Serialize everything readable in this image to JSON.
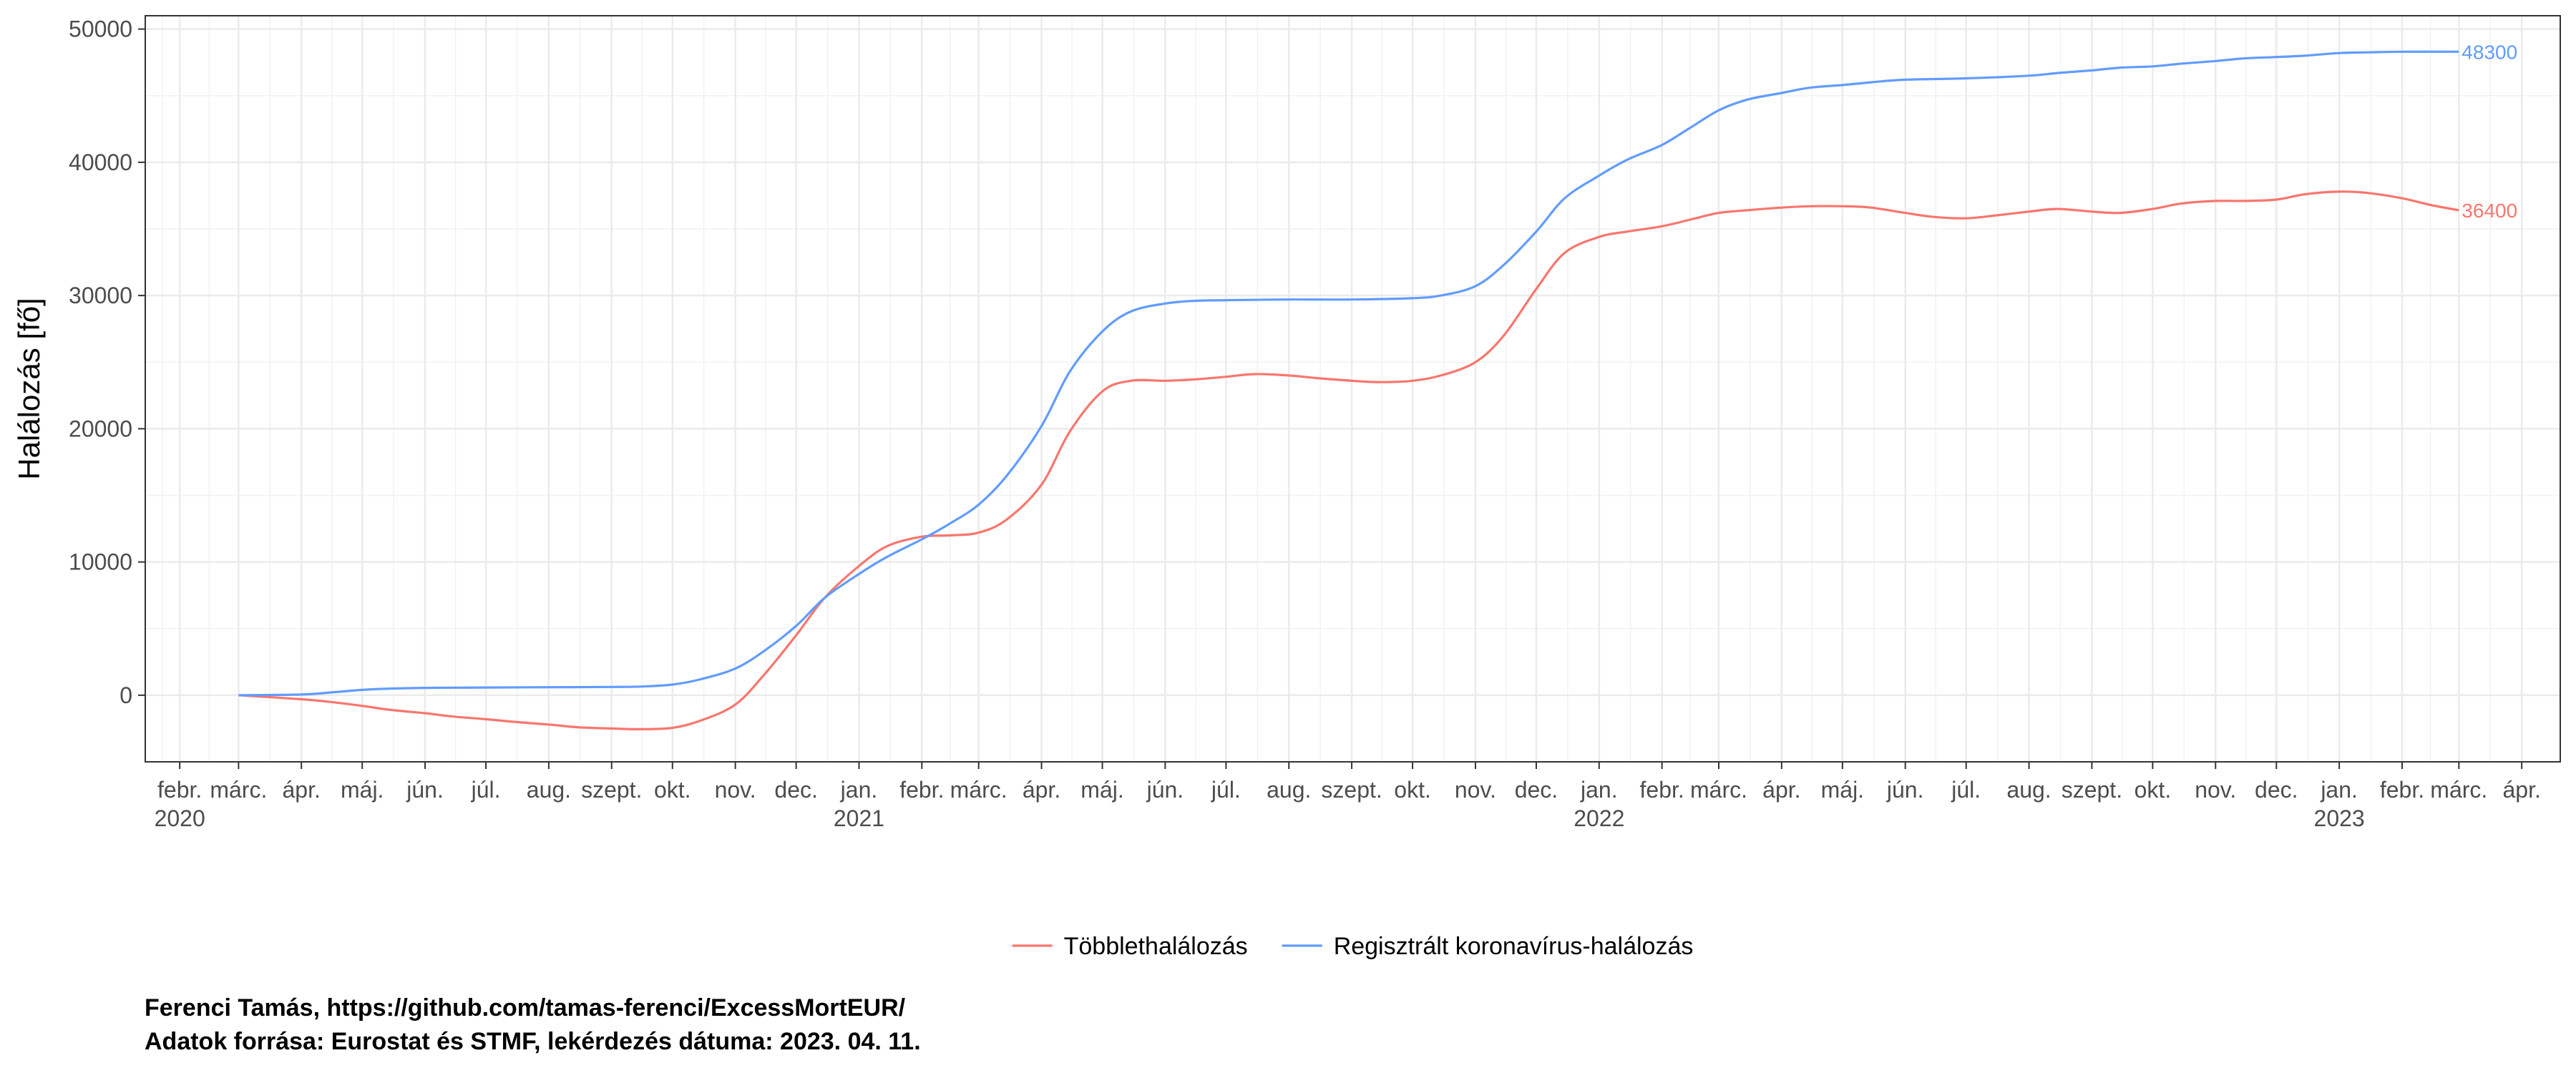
{
  "chart_data": {
    "type": "line",
    "title": "",
    "xlabel": "",
    "ylabel": "Halálozás [fő]",
    "ylim": [
      -5000,
      51000
    ],
    "y_ticks": [
      0,
      10000,
      20000,
      30000,
      40000,
      50000
    ],
    "xlim": [
      "2020-01-15",
      "2023-04-20"
    ],
    "x_tick_labels": [
      {
        "date": "2020-02-01",
        "label": "febr.",
        "year": "2020"
      },
      {
        "date": "2020-03-01",
        "label": "márc."
      },
      {
        "date": "2020-04-01",
        "label": "ápr."
      },
      {
        "date": "2020-05-01",
        "label": "máj."
      },
      {
        "date": "2020-06-01",
        "label": "jún."
      },
      {
        "date": "2020-07-01",
        "label": "júl."
      },
      {
        "date": "2020-08-01",
        "label": "aug."
      },
      {
        "date": "2020-09-01",
        "label": "szept."
      },
      {
        "date": "2020-10-01",
        "label": "okt."
      },
      {
        "date": "2020-11-01",
        "label": "nov."
      },
      {
        "date": "2020-12-01",
        "label": "dec."
      },
      {
        "date": "2021-01-01",
        "label": "jan.",
        "year": "2021"
      },
      {
        "date": "2021-02-01",
        "label": "febr."
      },
      {
        "date": "2021-03-01",
        "label": "márc."
      },
      {
        "date": "2021-04-01",
        "label": "ápr."
      },
      {
        "date": "2021-05-01",
        "label": "máj."
      },
      {
        "date": "2021-06-01",
        "label": "jún."
      },
      {
        "date": "2021-07-01",
        "label": "júl."
      },
      {
        "date": "2021-08-01",
        "label": "aug."
      },
      {
        "date": "2021-09-01",
        "label": "szept."
      },
      {
        "date": "2021-10-01",
        "label": "okt."
      },
      {
        "date": "2021-11-01",
        "label": "nov."
      },
      {
        "date": "2021-12-01",
        "label": "dec."
      },
      {
        "date": "2022-01-01",
        "label": "jan.",
        "year": "2022"
      },
      {
        "date": "2022-02-01",
        "label": "febr."
      },
      {
        "date": "2022-03-01",
        "label": "márc."
      },
      {
        "date": "2022-04-01",
        "label": "ápr."
      },
      {
        "date": "2022-05-01",
        "label": "máj."
      },
      {
        "date": "2022-06-01",
        "label": "jún."
      },
      {
        "date": "2022-07-01",
        "label": "júl."
      },
      {
        "date": "2022-08-01",
        "label": "aug."
      },
      {
        "date": "2022-09-01",
        "label": "szept."
      },
      {
        "date": "2022-10-01",
        "label": "okt."
      },
      {
        "date": "2022-11-01",
        "label": "nov."
      },
      {
        "date": "2022-12-01",
        "label": "dec."
      },
      {
        "date": "2023-01-01",
        "label": "jan.",
        "year": "2023"
      },
      {
        "date": "2023-02-01",
        "label": "febr."
      },
      {
        "date": "2023-03-01",
        "label": "márc."
      },
      {
        "date": "2023-04-01",
        "label": "ápr."
      }
    ],
    "grid": true,
    "legend_position": "bottom",
    "series": [
      {
        "name": "Többlethalálozás",
        "color": "#F8766D",
        "end_label": "36400",
        "points": [
          [
            "2020-03-01",
            0
          ],
          [
            "2020-04-01",
            -300
          ],
          [
            "2020-04-15",
            -500
          ],
          [
            "2020-05-01",
            -800
          ],
          [
            "2020-05-15",
            -1100
          ],
          [
            "2020-06-01",
            -1350
          ],
          [
            "2020-06-15",
            -1600
          ],
          [
            "2020-07-01",
            -1800
          ],
          [
            "2020-07-15",
            -2000
          ],
          [
            "2020-08-01",
            -2200
          ],
          [
            "2020-08-15",
            -2400
          ],
          [
            "2020-09-01",
            -2500
          ],
          [
            "2020-09-15",
            -2550
          ],
          [
            "2020-10-01",
            -2450
          ],
          [
            "2020-10-15",
            -1900
          ],
          [
            "2020-11-01",
            -700
          ],
          [
            "2020-11-15",
            1500
          ],
          [
            "2020-12-01",
            4500
          ],
          [
            "2020-12-15",
            7300
          ],
          [
            "2021-01-01",
            9700
          ],
          [
            "2021-01-15",
            11200
          ],
          [
            "2021-02-01",
            11900
          ],
          [
            "2021-02-15",
            12000
          ],
          [
            "2021-03-01",
            12200
          ],
          [
            "2021-03-15",
            13200
          ],
          [
            "2021-04-01",
            15800
          ],
          [
            "2021-04-15",
            19800
          ],
          [
            "2021-05-01",
            22800
          ],
          [
            "2021-05-15",
            23600
          ],
          [
            "2021-06-01",
            23600
          ],
          [
            "2021-06-15",
            23700
          ],
          [
            "2021-07-01",
            23900
          ],
          [
            "2021-07-15",
            24100
          ],
          [
            "2021-08-01",
            24000
          ],
          [
            "2021-08-15",
            23800
          ],
          [
            "2021-09-01",
            23600
          ],
          [
            "2021-09-15",
            23500
          ],
          [
            "2021-10-01",
            23600
          ],
          [
            "2021-10-15",
            24000
          ],
          [
            "2021-11-01",
            25000
          ],
          [
            "2021-11-15",
            27000
          ],
          [
            "2021-12-01",
            30500
          ],
          [
            "2021-12-15",
            33200
          ],
          [
            "2022-01-01",
            34400
          ],
          [
            "2022-01-15",
            34800
          ],
          [
            "2022-02-01",
            35200
          ],
          [
            "2022-02-15",
            35700
          ],
          [
            "2022-03-01",
            36200
          ],
          [
            "2022-03-15",
            36400
          ],
          [
            "2022-04-01",
            36600
          ],
          [
            "2022-04-15",
            36700
          ],
          [
            "2022-05-01",
            36700
          ],
          [
            "2022-05-15",
            36600
          ],
          [
            "2022-06-01",
            36200
          ],
          [
            "2022-06-15",
            35900
          ],
          [
            "2022-07-01",
            35800
          ],
          [
            "2022-07-15",
            36000
          ],
          [
            "2022-08-01",
            36300
          ],
          [
            "2022-08-15",
            36500
          ],
          [
            "2022-09-01",
            36300
          ],
          [
            "2022-09-15",
            36200
          ],
          [
            "2022-10-01",
            36500
          ],
          [
            "2022-10-15",
            36900
          ],
          [
            "2022-11-01",
            37100
          ],
          [
            "2022-11-15",
            37100
          ],
          [
            "2022-12-01",
            37200
          ],
          [
            "2022-12-15",
            37600
          ],
          [
            "2023-01-01",
            37800
          ],
          [
            "2023-01-15",
            37700
          ],
          [
            "2023-02-01",
            37300
          ],
          [
            "2023-02-15",
            36800
          ],
          [
            "2023-03-01",
            36400
          ]
        ]
      },
      {
        "name": "Regisztrált koronavírus-halálozás",
        "color": "#619CFF",
        "end_label": "48300",
        "points": [
          [
            "2020-03-01",
            0
          ],
          [
            "2020-04-01",
            50
          ],
          [
            "2020-04-15",
            200
          ],
          [
            "2020-05-01",
            400
          ],
          [
            "2020-05-15",
            500
          ],
          [
            "2020-06-01",
            550
          ],
          [
            "2020-07-01",
            580
          ],
          [
            "2020-08-01",
            600
          ],
          [
            "2020-09-01",
            620
          ],
          [
            "2020-09-15",
            650
          ],
          [
            "2020-10-01",
            800
          ],
          [
            "2020-10-15",
            1200
          ],
          [
            "2020-11-01",
            2000
          ],
          [
            "2020-11-15",
            3300
          ],
          [
            "2020-12-01",
            5200
          ],
          [
            "2020-12-15",
            7300
          ],
          [
            "2021-01-01",
            9100
          ],
          [
            "2021-01-15",
            10400
          ],
          [
            "2021-02-01",
            11700
          ],
          [
            "2021-02-15",
            12900
          ],
          [
            "2021-03-01",
            14300
          ],
          [
            "2021-03-15",
            16500
          ],
          [
            "2021-04-01",
            20200
          ],
          [
            "2021-04-15",
            24300
          ],
          [
            "2021-05-01",
            27300
          ],
          [
            "2021-05-15",
            28800
          ],
          [
            "2021-06-01",
            29400
          ],
          [
            "2021-06-15",
            29600
          ],
          [
            "2021-07-01",
            29650
          ],
          [
            "2021-08-01",
            29700
          ],
          [
            "2021-09-01",
            29700
          ],
          [
            "2021-10-01",
            29800
          ],
          [
            "2021-10-15",
            30000
          ],
          [
            "2021-11-01",
            30700
          ],
          [
            "2021-11-15",
            32300
          ],
          [
            "2021-12-01",
            34800
          ],
          [
            "2021-12-15",
            37300
          ],
          [
            "2022-01-01",
            39000
          ],
          [
            "2022-01-15",
            40200
          ],
          [
            "2022-02-01",
            41300
          ],
          [
            "2022-02-15",
            42600
          ],
          [
            "2022-03-01",
            43900
          ],
          [
            "2022-03-15",
            44700
          ],
          [
            "2022-04-01",
            45200
          ],
          [
            "2022-04-15",
            45600
          ],
          [
            "2022-05-01",
            45800
          ],
          [
            "2022-05-15",
            46000
          ],
          [
            "2022-06-01",
            46200
          ],
          [
            "2022-07-01",
            46300
          ],
          [
            "2022-08-01",
            46500
          ],
          [
            "2022-08-15",
            46700
          ],
          [
            "2022-09-01",
            46900
          ],
          [
            "2022-09-15",
            47100
          ],
          [
            "2022-10-01",
            47200
          ],
          [
            "2022-10-15",
            47400
          ],
          [
            "2022-11-01",
            47600
          ],
          [
            "2022-11-15",
            47800
          ],
          [
            "2022-12-01",
            47900
          ],
          [
            "2022-12-15",
            48000
          ],
          [
            "2023-01-01",
            48200
          ],
          [
            "2023-01-15",
            48250
          ],
          [
            "2023-02-01",
            48300
          ],
          [
            "2023-03-01",
            48300
          ]
        ]
      }
    ]
  },
  "caption": {
    "line1": "Ferenci Tamás, https://github.com/tamas-ferenci/ExcessMortEUR/",
    "line2": "Adatok forrása: Eurostat és STMF, lekérdezés dátuma: 2023. 04. 11."
  }
}
